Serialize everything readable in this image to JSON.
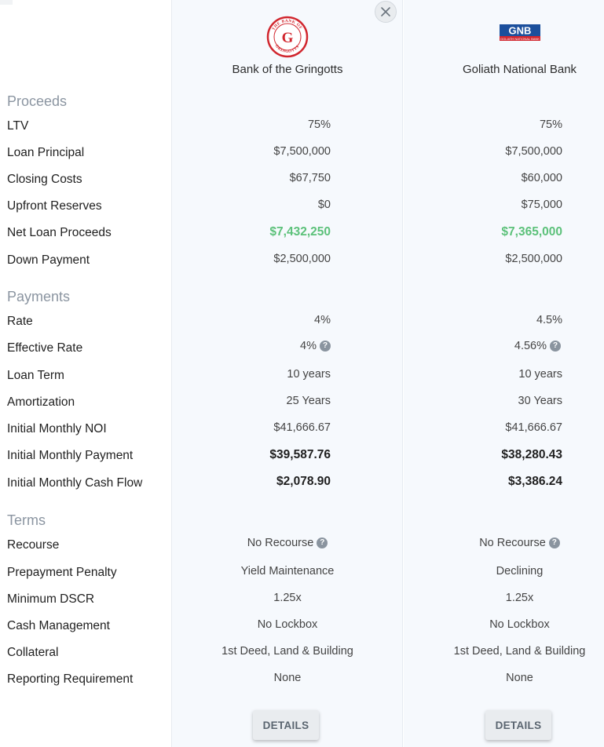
{
  "banks": [
    {
      "name": "Bank of the Gringotts",
      "logo_text": "THE BANK OF GRINGOTTS",
      "logo_letter": "G",
      "logo_color": "#d1262e",
      "proceeds": {
        "ltv": "75%",
        "loan_principal": "$7,500,000",
        "closing_costs": "$67,750",
        "upfront_reserves": "$0",
        "net_loan_proceeds": "$7,432,250",
        "down_payment": "$2,500,000"
      },
      "payments": {
        "rate": "4%",
        "effective_rate": "4%",
        "loan_term": "10 years",
        "amortization": "25 Years",
        "initial_monthly_noi": "$41,666.67",
        "initial_monthly_payment": "$39,587.76",
        "initial_monthly_cash_flow": "$2,078.90"
      },
      "terms": {
        "recourse": "No Recourse",
        "prepayment_penalty": "Yield Maintenance",
        "minimum_dscr": "1.25x",
        "cash_management": "No Lockbox",
        "collateral": "1st Deed, Land & Building",
        "reporting_requirement": "None"
      },
      "details_label": "DETAILS"
    },
    {
      "name": "Goliath National Bank",
      "logo_text": "GNB",
      "logo_subtext": "GOLIATH NATIONAL BANK",
      "logo_color": "#1b4f9c",
      "logo_accent": "#d1262e",
      "proceeds": {
        "ltv": "75%",
        "loan_principal": "$7,500,000",
        "closing_costs": "$60,000",
        "upfront_reserves": "$75,000",
        "net_loan_proceeds": "$7,365,000",
        "down_payment": "$2,500,000"
      },
      "payments": {
        "rate": "4.5%",
        "effective_rate": "4.56%",
        "loan_term": "10 years",
        "amortization": "30 Years",
        "initial_monthly_noi": "$41,666.67",
        "initial_monthly_payment": "$38,280.43",
        "initial_monthly_cash_flow": "$3,386.24"
      },
      "terms": {
        "recourse": "No Recourse",
        "prepayment_penalty": "Declining",
        "minimum_dscr": "1.25x",
        "cash_management": "No Lockbox",
        "collateral": "1st Deed, Land & Building",
        "reporting_requirement": "None"
      },
      "details_label": "DETAILS"
    }
  ],
  "sections": {
    "proceeds": "Proceeds",
    "payments": "Payments",
    "terms": "Terms"
  },
  "labels": {
    "ltv": "LTV",
    "loan_principal": "Loan Principal",
    "closing_costs": "Closing Costs",
    "upfront_reserves": "Upfront Reserves",
    "net_loan_proceeds": "Net Loan Proceeds",
    "down_payment": "Down Payment",
    "rate": "Rate",
    "effective_rate": "Effective Rate",
    "loan_term": "Loan Term",
    "amortization": "Amortization",
    "initial_monthly_noi": "Initial Monthly NOI",
    "initial_monthly_payment": "Initial Monthly Payment",
    "initial_monthly_cash_flow": "Initial Monthly Cash Flow",
    "recourse": "Recourse",
    "prepayment_penalty": "Prepayment Penalty",
    "minimum_dscr": "Minimum DSCR",
    "cash_management": "Cash Management",
    "collateral": "Collateral",
    "reporting_requirement": "Reporting Requirement"
  },
  "help_glyph": "?",
  "icons": {
    "close": "close-icon",
    "help": "help-icon"
  }
}
